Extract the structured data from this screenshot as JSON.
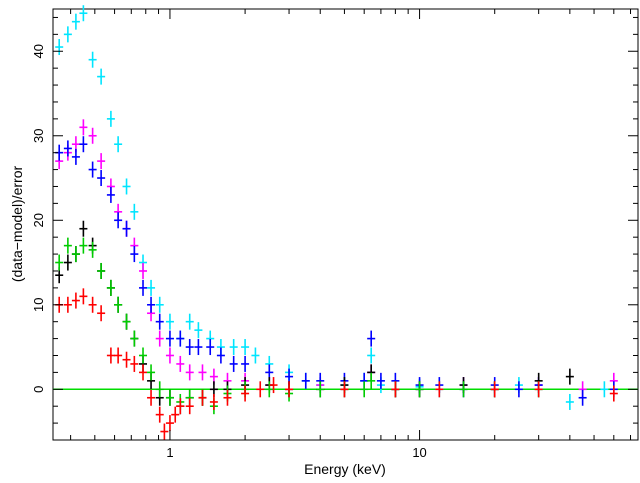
{
  "chart_data": {
    "type": "scatter",
    "title": "",
    "xlabel": "Energy (keV)",
    "ylabel": "(data−model)/error",
    "x_scale": "log",
    "xlim": [
      0.34,
      75
    ],
    "ylim": [
      -6,
      45
    ],
    "x_ticks": [
      {
        "value": 1,
        "label": "1"
      },
      {
        "value": 10,
        "label": "10"
      }
    ],
    "y_ticks": [
      {
        "value": 0,
        "label": "0"
      },
      {
        "value": 10,
        "label": "10"
      },
      {
        "value": 20,
        "label": "20"
      },
      {
        "value": 30,
        "label": "30"
      },
      {
        "value": 40,
        "label": "40"
      }
    ],
    "grid": false,
    "legend": "none",
    "reference_line": {
      "y": 0,
      "color": "#00dd00"
    },
    "series": [
      {
        "color": "#00e5ff",
        "points": [
          [
            0.36,
            40.5
          ],
          [
            0.39,
            42
          ],
          [
            0.42,
            43.5
          ],
          [
            0.45,
            44.5
          ],
          [
            0.49,
            39
          ],
          [
            0.53,
            37
          ],
          [
            0.58,
            32
          ],
          [
            0.62,
            29
          ],
          [
            0.67,
            24
          ],
          [
            0.72,
            21
          ],
          [
            0.78,
            15
          ],
          [
            0.84,
            12
          ],
          [
            0.91,
            10
          ],
          [
            1.0,
            8
          ],
          [
            1.1,
            6
          ],
          [
            1.2,
            8
          ],
          [
            1.3,
            7
          ],
          [
            1.45,
            6
          ],
          [
            1.6,
            5
          ],
          [
            1.8,
            5
          ],
          [
            2.0,
            5
          ],
          [
            2.2,
            4
          ],
          [
            2.5,
            3
          ],
          [
            3.0,
            2
          ],
          [
            3.5,
            1
          ],
          [
            4.0,
            0.5
          ],
          [
            5.0,
            0.5
          ],
          [
            6.0,
            1
          ],
          [
            6.4,
            4
          ],
          [
            7.0,
            0.5
          ],
          [
            8.0,
            0
          ],
          [
            10.0,
            0.3
          ],
          [
            12.0,
            0
          ],
          [
            15.0,
            0.5
          ],
          [
            20.0,
            0
          ],
          [
            25.0,
            0.5
          ],
          [
            30.0,
            0
          ],
          [
            40.0,
            -1.5
          ],
          [
            55.0,
            0
          ]
        ]
      },
      {
        "color": "#ff00ff",
        "points": [
          [
            0.36,
            27
          ],
          [
            0.39,
            28
          ],
          [
            0.42,
            29
          ],
          [
            0.45,
            31
          ],
          [
            0.49,
            30
          ],
          [
            0.53,
            27
          ],
          [
            0.58,
            24
          ],
          [
            0.62,
            21
          ],
          [
            0.67,
            19
          ],
          [
            0.72,
            17
          ],
          [
            0.78,
            14
          ],
          [
            0.84,
            9
          ],
          [
            0.91,
            6
          ],
          [
            1.0,
            4
          ],
          [
            1.1,
            3
          ],
          [
            1.2,
            2
          ],
          [
            1.35,
            2
          ],
          [
            1.5,
            1.5
          ],
          [
            1.7,
            1
          ],
          [
            2.0,
            1
          ],
          [
            2.5,
            0.5
          ],
          [
            3.0,
            0
          ],
          [
            4.0,
            0.5
          ],
          [
            5.0,
            0
          ],
          [
            6.4,
            2
          ],
          [
            8.0,
            0
          ],
          [
            10.0,
            0
          ],
          [
            15.0,
            0.5
          ],
          [
            20.0,
            0
          ],
          [
            30.0,
            0.5
          ],
          [
            45.0,
            0
          ],
          [
            60.0,
            1
          ]
        ]
      },
      {
        "color": "#0000ff",
        "points": [
          [
            0.36,
            28
          ],
          [
            0.39,
            28.5
          ],
          [
            0.42,
            27.5
          ],
          [
            0.45,
            29
          ],
          [
            0.49,
            26
          ],
          [
            0.53,
            25
          ],
          [
            0.58,
            23
          ],
          [
            0.62,
            20
          ],
          [
            0.67,
            19
          ],
          [
            0.72,
            16
          ],
          [
            0.78,
            12
          ],
          [
            0.84,
            10
          ],
          [
            0.91,
            8
          ],
          [
            1.0,
            6
          ],
          [
            1.1,
            6
          ],
          [
            1.2,
            5
          ],
          [
            1.3,
            5
          ],
          [
            1.45,
            5
          ],
          [
            1.6,
            4
          ],
          [
            1.8,
            3
          ],
          [
            2.0,
            3
          ],
          [
            2.5,
            2
          ],
          [
            3.0,
            1.5
          ],
          [
            3.5,
            1
          ],
          [
            4.0,
            1
          ],
          [
            5.0,
            1
          ],
          [
            6.0,
            1
          ],
          [
            6.4,
            6
          ],
          [
            7.0,
            1
          ],
          [
            8.0,
            1
          ],
          [
            10.0,
            0.5
          ],
          [
            12.0,
            0.5
          ],
          [
            15.0,
            0
          ],
          [
            20.0,
            0.5
          ],
          [
            25.0,
            0
          ],
          [
            30.0,
            0.5
          ],
          [
            45.0,
            -1
          ],
          [
            60.0,
            0
          ]
        ]
      },
      {
        "color": "#000000",
        "points": [
          [
            0.36,
            13.5
          ],
          [
            0.39,
            15
          ],
          [
            0.42,
            16
          ],
          [
            0.45,
            19
          ],
          [
            0.49,
            17
          ],
          [
            0.53,
            14
          ],
          [
            0.58,
            12
          ],
          [
            0.62,
            10
          ],
          [
            0.67,
            8
          ],
          [
            0.72,
            6
          ],
          [
            0.78,
            3
          ],
          [
            0.84,
            1
          ],
          [
            0.91,
            -1
          ],
          [
            1.0,
            -1
          ],
          [
            1.1,
            -2
          ],
          [
            1.2,
            -1
          ],
          [
            1.35,
            -1
          ],
          [
            1.5,
            0
          ],
          [
            1.7,
            0
          ],
          [
            2.0,
            0.5
          ],
          [
            2.5,
            0.5
          ],
          [
            3.0,
            0
          ],
          [
            4.0,
            0
          ],
          [
            5.0,
            0.5
          ],
          [
            6.4,
            2
          ],
          [
            8.0,
            0
          ],
          [
            10.0,
            0
          ],
          [
            15.0,
            0.5
          ],
          [
            20.0,
            0
          ],
          [
            30.0,
            1
          ],
          [
            40.0,
            1.5
          ]
        ]
      },
      {
        "color": "#00cc00",
        "points": [
          [
            0.36,
            15
          ],
          [
            0.39,
            17
          ],
          [
            0.42,
            16
          ],
          [
            0.45,
            17
          ],
          [
            0.49,
            16.5
          ],
          [
            0.53,
            14
          ],
          [
            0.58,
            12
          ],
          [
            0.62,
            10
          ],
          [
            0.67,
            8
          ],
          [
            0.72,
            6
          ],
          [
            0.78,
            4
          ],
          [
            0.84,
            2
          ],
          [
            0.91,
            0
          ],
          [
            1.0,
            -1
          ],
          [
            1.1,
            -1.5
          ],
          [
            1.2,
            -1
          ],
          [
            1.35,
            -1
          ],
          [
            1.5,
            -2
          ],
          [
            1.7,
            -0.5
          ],
          [
            2.0,
            0
          ],
          [
            2.5,
            0
          ],
          [
            3.0,
            -0.5
          ],
          [
            4.0,
            0
          ],
          [
            5.0,
            0
          ],
          [
            6.0,
            0
          ],
          [
            6.4,
            1
          ],
          [
            8.0,
            0
          ],
          [
            10.0,
            0
          ],
          [
            15.0,
            0
          ],
          [
            20.0,
            0
          ],
          [
            30.0,
            0
          ]
        ]
      },
      {
        "color": "#ff0000",
        "points": [
          [
            0.36,
            10
          ],
          [
            0.39,
            10
          ],
          [
            0.42,
            10.5
          ],
          [
            0.45,
            11
          ],
          [
            0.49,
            10
          ],
          [
            0.53,
            9
          ],
          [
            0.58,
            4
          ],
          [
            0.62,
            4
          ],
          [
            0.67,
            3.5
          ],
          [
            0.72,
            3
          ],
          [
            0.78,
            2
          ],
          [
            0.84,
            -1
          ],
          [
            0.91,
            -3
          ],
          [
            0.95,
            -5
          ],
          [
            1.0,
            -4
          ],
          [
            1.05,
            -3
          ],
          [
            1.1,
            -2
          ],
          [
            1.2,
            -2
          ],
          [
            1.35,
            -1
          ],
          [
            1.5,
            -1.5
          ],
          [
            1.7,
            -1
          ],
          [
            2.0,
            -0.5
          ],
          [
            2.3,
            0
          ],
          [
            2.6,
            0.5
          ],
          [
            3.0,
            0
          ],
          [
            5.0,
            0
          ],
          [
            8.0,
            0
          ],
          [
            12.0,
            0
          ],
          [
            20.0,
            0
          ],
          [
            30.0,
            0
          ],
          [
            60.0,
            -0.5
          ]
        ]
      }
    ]
  }
}
